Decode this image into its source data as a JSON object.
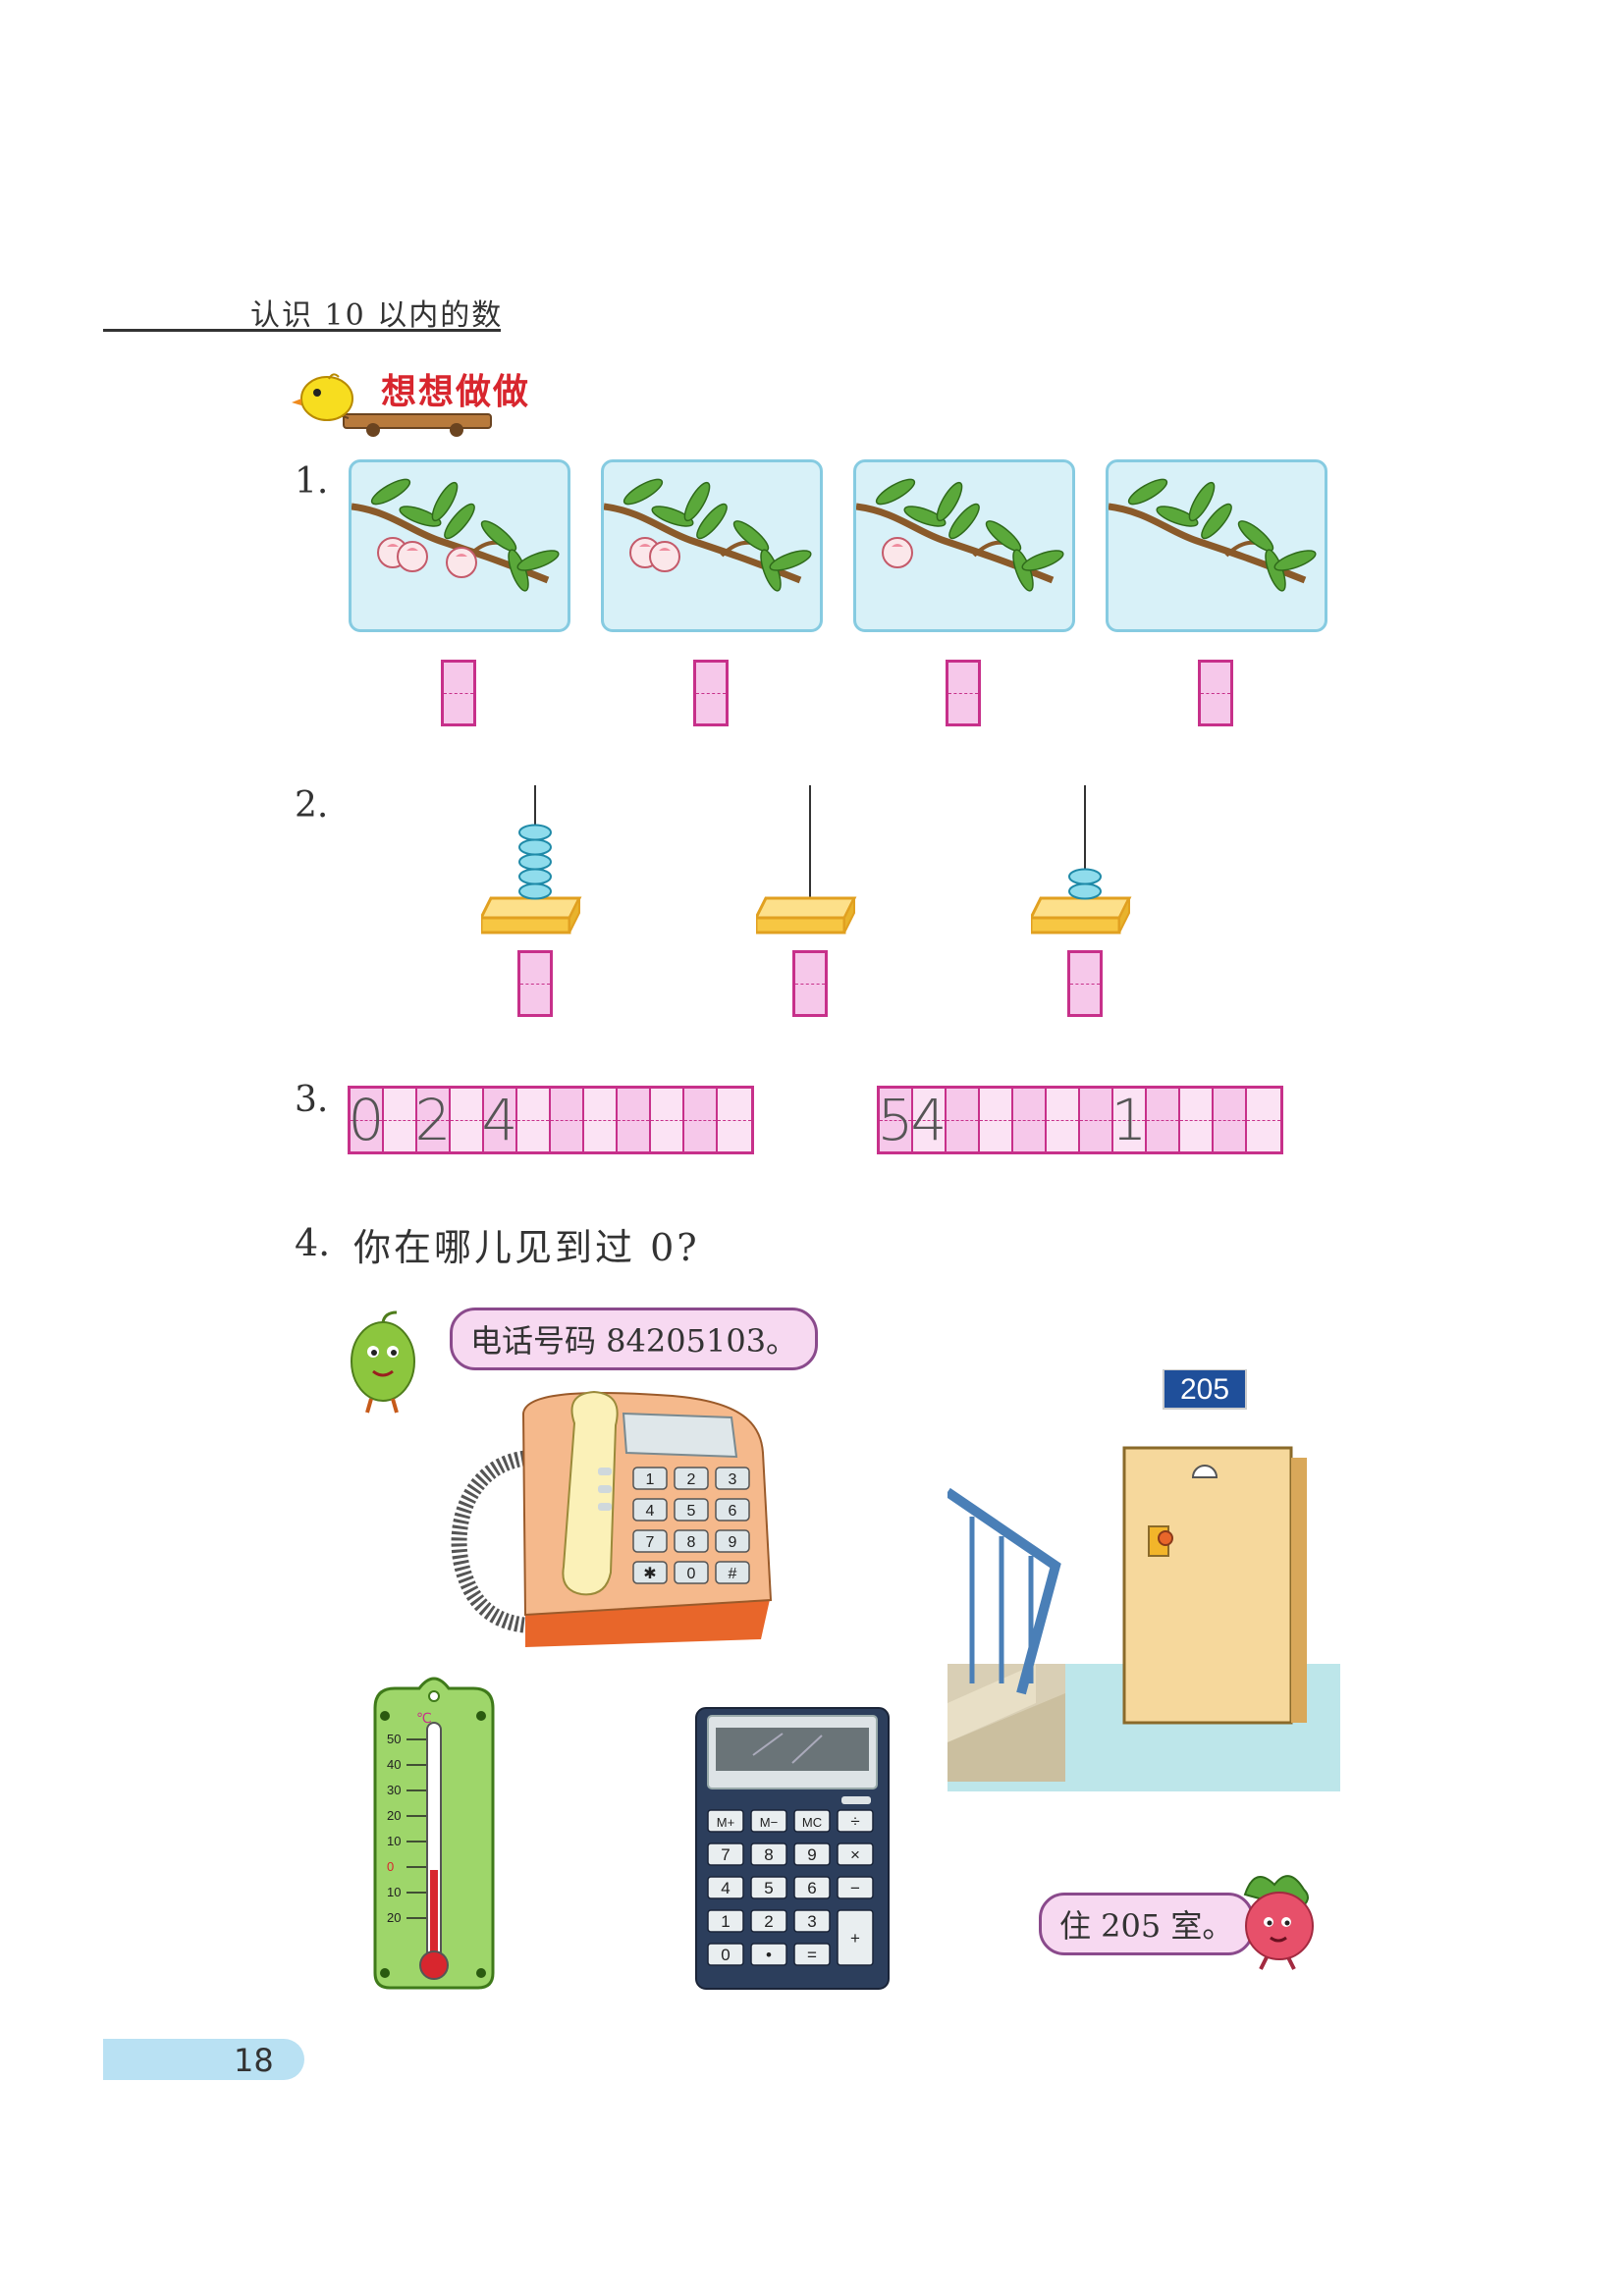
{
  "header": {
    "title": "认识 10 以内的数"
  },
  "section": {
    "title": "想想做做"
  },
  "q1": {
    "number": "1.",
    "peach_counts": [
      3,
      2,
      1,
      0
    ]
  },
  "q2": {
    "number": "2.",
    "bead_counts": [
      5,
      0,
      2
    ]
  },
  "q3": {
    "number": "3.",
    "row1": [
      "0",
      "",
      "2",
      "",
      "4",
      "",
      "",
      "",
      "",
      "",
      "",
      ""
    ],
    "row2": [
      "5",
      "4",
      "",
      "",
      "",
      "",
      "",
      "1",
      "",
      "",
      "",
      ""
    ]
  },
  "q4": {
    "number": "4.",
    "question": "你在哪儿见到过 0?",
    "bubble_phone": "电话号码 84205103。",
    "bubble_room": "住 205 室。",
    "room_plate": "205",
    "phone_keys": [
      "1",
      "2",
      "3",
      "4",
      "5",
      "6",
      "7",
      "8",
      "9",
      "✱",
      "0",
      "#"
    ],
    "thermo_unit": "℃",
    "thermo_ticks": [
      "50",
      "40",
      "30",
      "20",
      "10",
      "0",
      "10",
      "20"
    ],
    "calc_keys": [
      "M+",
      "M−",
      "MC",
      "÷",
      "7",
      "8",
      "9",
      "×",
      "4",
      "5",
      "6",
      "−",
      "1",
      "2",
      "3",
      "+",
      "0",
      "•",
      "="
    ]
  },
  "footer": {
    "page_number": "18"
  },
  "colors": {
    "accent_pink": "#c7308a",
    "box_fill": "#f6c8ea",
    "sky": "#d8f1f8",
    "title_red": "#d8262e"
  }
}
